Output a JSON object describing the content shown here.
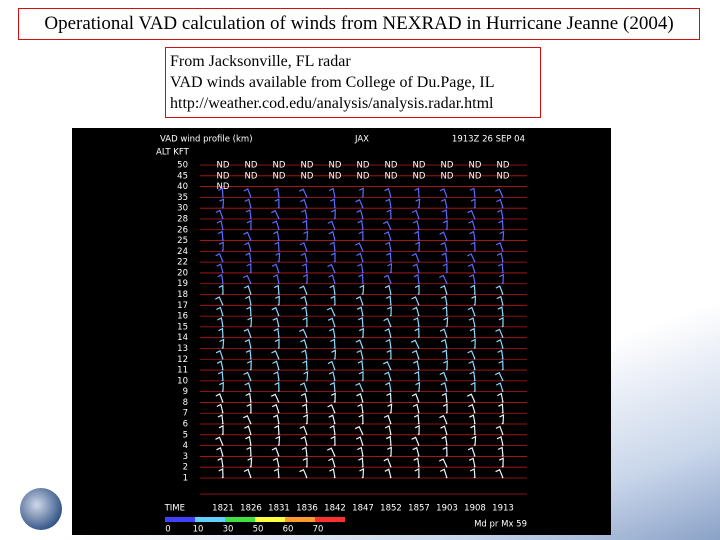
{
  "header": {
    "title": "Operational VAD calculation of winds from NEXRAD in Hurricane Jeanne (2004)"
  },
  "textbox": {
    "lines": [
      "From Jacksonville, FL radar",
      "VAD winds available from College of Du.Page, IL",
      "http://weather.cod.edu/analysis/analysis.radar.html"
    ]
  },
  "vad": {
    "title": "VAD wind profile (km)",
    "station": "JAX",
    "time": "1913Z 26 SEP 04",
    "alt_label": "ALT KFT",
    "altitudes": [
      50,
      45,
      40,
      35,
      30,
      28,
      26,
      25,
      24,
      22,
      20,
      19,
      18,
      17,
      16,
      15,
      14,
      13,
      12,
      11,
      10,
      9,
      8,
      7,
      6,
      5,
      4,
      3,
      2,
      1
    ],
    "no_data": "ND",
    "time_label": "TIME",
    "times": [
      "1821",
      "1826",
      "1831",
      "1836",
      "1842",
      "1847",
      "1852",
      "1857",
      "1903",
      "1908",
      "1913"
    ],
    "colorbar_labels": [
      "0",
      "10",
      "30",
      "50",
      "60",
      "70"
    ],
    "footer": "Md pr Mx 59"
  }
}
